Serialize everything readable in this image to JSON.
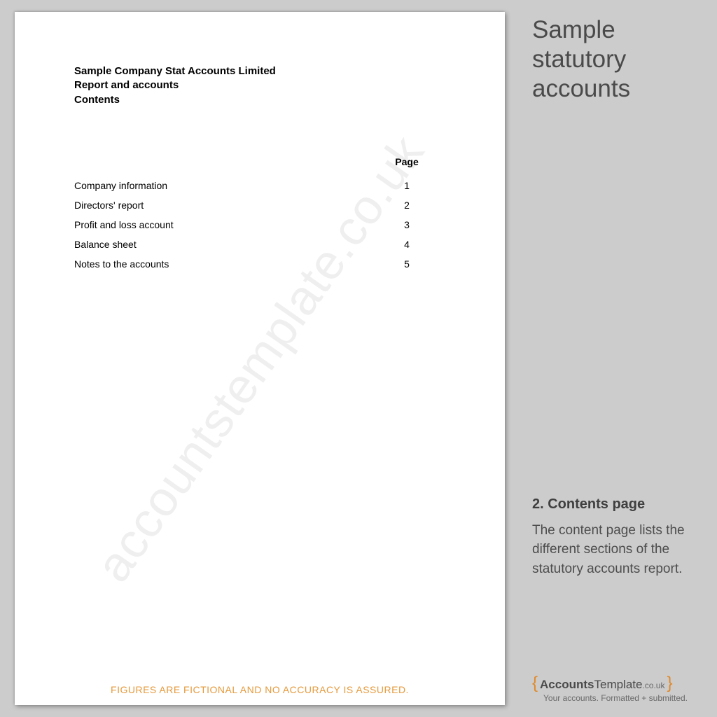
{
  "document": {
    "heading_line1": "Sample Company Stat Accounts Limited",
    "heading_line2": "Report and accounts",
    "heading_line3": "Contents",
    "watermark_text": "accountstemplate.co.uk",
    "watermark_color": "#f0efef",
    "toc_page_header": "Page",
    "toc": [
      {
        "label": "Company information",
        "page": "1"
      },
      {
        "label": "Directors' report",
        "page": "2"
      },
      {
        "label": "Profit and loss account",
        "page": "3"
      },
      {
        "label": "Balance sheet",
        "page": "4"
      },
      {
        "label": "Notes to the accounts",
        "page": "5"
      }
    ],
    "disclaimer": "FIGURES ARE FICTIONAL AND NO ACCURACY IS ASSURED.",
    "disclaimer_color": "#e59a3d",
    "page_bg": "#ffffff"
  },
  "sidebar": {
    "title": "Sample statutory accounts",
    "section_heading": "2. Contents page",
    "section_body": "The content page lists the different sections of the statutory accounts report.",
    "bg_color": "#cccccc",
    "text_color": "#4a4a4a"
  },
  "brand": {
    "brace_open": "{",
    "brace_close": "}",
    "brace_color": "#e08a2a",
    "name_bold": "Accounts",
    "name_light": "Template",
    "suffix": ".co.uk",
    "tagline": "Your accounts. Formatted + submitted."
  }
}
